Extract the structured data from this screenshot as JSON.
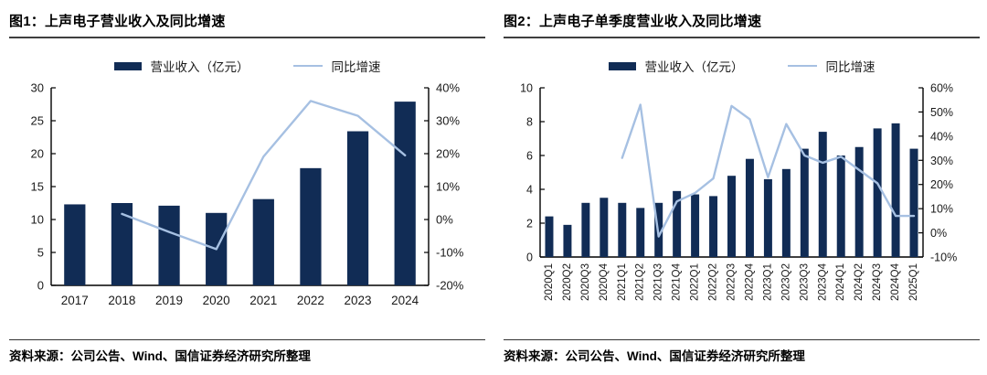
{
  "colors": {
    "bar": "#112C55",
    "line": "#A6C0E2",
    "axis": "#000000",
    "tick_text": "#1A1A1A",
    "title_text": "#000000",
    "title_rule": "#3F3F3F",
    "source_rule": "#333333"
  },
  "chart_data": [
    {
      "type": "bar+line",
      "title": "图1：上声电子营业收入及同比增速",
      "legend_position": "top-center",
      "grid": false,
      "categories": [
        "2017",
        "2018",
        "2019",
        "2020",
        "2021",
        "2022",
        "2023",
        "2024"
      ],
      "series": [
        {
          "name": "营业收入（亿元）",
          "type": "bar",
          "axis": "left",
          "values": [
            12.3,
            12.5,
            12.1,
            11.0,
            13.1,
            17.8,
            23.4,
            27.9
          ]
        },
        {
          "name": "同比增速",
          "type": "line",
          "axis": "right",
          "unit": "%",
          "values": [
            null,
            1.7,
            -3.8,
            -9.0,
            19.1,
            36.0,
            31.5,
            19.5
          ]
        }
      ],
      "left_axis": {
        "min": 0,
        "max": 30,
        "tick_step": 5,
        "labels": [
          "0",
          "5",
          "10",
          "15",
          "20",
          "25",
          "30"
        ]
      },
      "right_axis": {
        "min": -20,
        "max": 40,
        "tick_step": 10,
        "labels": [
          "-20%",
          "-10%",
          "0%",
          "10%",
          "20%",
          "30%",
          "40%"
        ]
      },
      "source": "资料来源：公司公告、Wind、国信证券经济研究所整理"
    },
    {
      "type": "bar+line",
      "title": "图2：上声电子单季度营业收入及同比增速",
      "legend_position": "top-center",
      "grid": false,
      "x_labels_rotated": true,
      "categories": [
        "2020Q1",
        "2020Q2",
        "2020Q3",
        "2020Q4",
        "2021Q1",
        "2021Q2",
        "2021Q3",
        "2021Q4",
        "2022Q1",
        "2022Q2",
        "2022Q3",
        "2022Q4",
        "2023Q1",
        "2023Q2",
        "2023Q3",
        "2023Q4",
        "2024Q1",
        "2024Q2",
        "2024Q3",
        "2024Q4",
        "2025Q1"
      ],
      "series": [
        {
          "name": "营业收入（亿元）",
          "type": "bar",
          "axis": "left",
          "values": [
            2.4,
            1.9,
            3.2,
            3.5,
            3.2,
            2.9,
            3.2,
            3.9,
            3.7,
            3.6,
            4.8,
            5.8,
            4.6,
            5.2,
            6.4,
            7.4,
            6.0,
            6.5,
            7.6,
            7.9,
            6.4
          ]
        },
        {
          "name": "同比增速",
          "type": "line",
          "axis": "right",
          "unit": "%",
          "values": [
            null,
            null,
            null,
            null,
            31,
            53,
            -1.5,
            13,
            16.5,
            22.5,
            52.5,
            47,
            23,
            45,
            32,
            29,
            31.5,
            26,
            20.5,
            7,
            7
          ]
        }
      ],
      "left_axis": {
        "min": 0,
        "max": 10,
        "tick_step": 2,
        "labels": [
          "0",
          "2",
          "4",
          "6",
          "8",
          "10"
        ]
      },
      "right_axis": {
        "min": -10,
        "max": 60,
        "tick_step": 10,
        "labels": [
          "-10%",
          "0%",
          "10%",
          "20%",
          "30%",
          "40%",
          "50%",
          "60%"
        ]
      },
      "source": "资料来源：公司公告、Wind、国信证券经济研究所整理"
    }
  ]
}
